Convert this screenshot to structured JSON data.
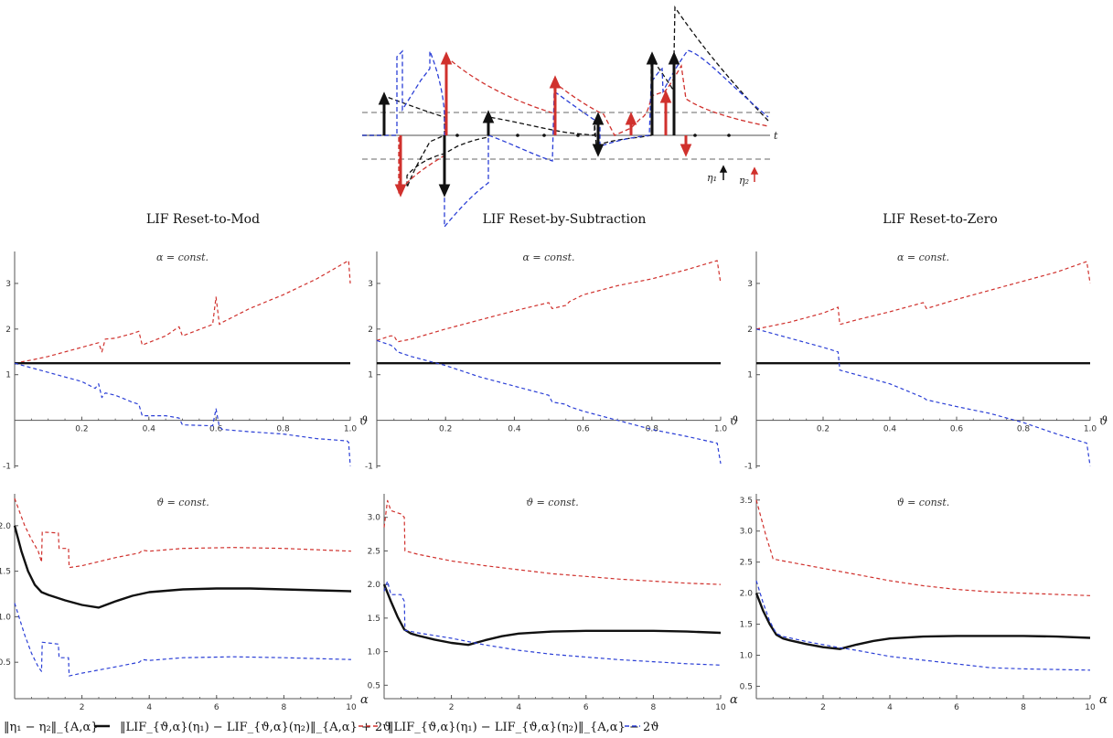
{
  "colors": {
    "black": "#111111",
    "red": "#d0312d",
    "blue": "#2b3fd6",
    "grey": "#9a9a9a",
    "axis": "#555555"
  },
  "diagram": {
    "time_label": "t",
    "eta1_label": "η₁",
    "eta2_label": "η₂"
  },
  "column_titles": [
    "LIF Reset-to-Mod",
    "LIF Reset-by-Subtraction",
    "LIF Reset-to-Zero"
  ],
  "legend": {
    "black_label": "‖η₁ − η₂‖_{A,α}",
    "red_label": "‖LIF_{ϑ,α}(η₁) − LIF_{ϑ,α}(η₂)‖_{A,α} + 2ϑ",
    "blue_label": "‖LIF_{ϑ,α}(η₁) − LIF_{ϑ,α}(η₂)‖_{A,α} − 2ϑ"
  },
  "chart_data": [
    {
      "id": "mod-theta",
      "type": "line",
      "title": "α = const.",
      "xlabel": "ϑ",
      "xlim": [
        0,
        1
      ],
      "ylim": [
        -1.05,
        3.7
      ],
      "xticks": [
        0.2,
        0.4,
        0.6,
        0.8,
        1.0
      ],
      "xtick_labels": [
        "0.2",
        "0.4",
        "0.6",
        "0.8",
        "1.0"
      ],
      "yticks": [
        -1,
        1,
        2,
        3
      ],
      "ytick_labels": [
        "-1",
        "1",
        "2",
        "3"
      ],
      "series": [
        {
          "name": "red-dashed",
          "color": "red",
          "dash": true,
          "x": [
            0,
            0.05,
            0.1,
            0.15,
            0.2,
            0.24,
            0.25,
            0.26,
            0.27,
            0.3,
            0.35,
            0.37,
            0.38,
            0.45,
            0.49,
            0.5,
            0.59,
            0.6,
            0.61,
            0.62,
            0.7,
            0.8,
            0.9,
            0.99,
            0.995,
            1.0
          ],
          "y": [
            1.25,
            1.32,
            1.4,
            1.5,
            1.6,
            1.68,
            1.7,
            1.5,
            1.78,
            1.8,
            1.9,
            1.95,
            1.65,
            1.85,
            2.05,
            1.85,
            2.1,
            2.7,
            2.1,
            2.15,
            2.45,
            2.75,
            3.1,
            3.48,
            3.5,
            3.0
          ]
        },
        {
          "name": "black-solid",
          "color": "black",
          "dash": false,
          "x": [
            0,
            1.0
          ],
          "y": [
            1.25,
            1.25
          ]
        },
        {
          "name": "blue-dashed",
          "color": "blue",
          "dash": true,
          "x": [
            0,
            0.05,
            0.1,
            0.15,
            0.2,
            0.24,
            0.25,
            0.26,
            0.27,
            0.3,
            0.35,
            0.37,
            0.38,
            0.45,
            0.49,
            0.5,
            0.59,
            0.6,
            0.61,
            0.62,
            0.7,
            0.8,
            0.9,
            0.99,
            0.995,
            1.0
          ],
          "y": [
            1.25,
            1.15,
            1.05,
            0.95,
            0.85,
            0.7,
            0.8,
            0.5,
            0.6,
            0.55,
            0.4,
            0.35,
            0.1,
            0.1,
            0.05,
            -0.1,
            -0.12,
            0.25,
            -0.15,
            -0.2,
            -0.25,
            -0.3,
            -0.4,
            -0.45,
            -0.48,
            -1.0
          ]
        }
      ]
    },
    {
      "id": "sub-theta",
      "type": "line",
      "title": "α = const.",
      "xlabel": "ϑ",
      "xlim": [
        0,
        1
      ],
      "ylim": [
        -1.05,
        3.7
      ],
      "xticks": [
        0.2,
        0.4,
        0.6,
        0.8,
        1.0
      ],
      "xtick_labels": [
        "0.2",
        "0.4",
        "0.6",
        "0.8",
        "1.0"
      ],
      "yticks": [
        -1,
        1,
        2,
        3
      ],
      "ytick_labels": [
        "-1",
        "1",
        "2",
        "3"
      ],
      "series": [
        {
          "name": "red-dashed",
          "color": "red",
          "dash": true,
          "x": [
            0,
            0.04,
            0.05,
            0.06,
            0.1,
            0.2,
            0.3,
            0.4,
            0.5,
            0.51,
            0.55,
            0.56,
            0.6,
            0.7,
            0.8,
            0.9,
            0.99,
            1.0
          ],
          "y": [
            1.75,
            1.85,
            1.85,
            1.72,
            1.78,
            2.0,
            2.2,
            2.4,
            2.58,
            2.45,
            2.52,
            2.6,
            2.75,
            2.95,
            3.1,
            3.3,
            3.5,
            3.0
          ]
        },
        {
          "name": "black-solid",
          "color": "black",
          "dash": false,
          "x": [
            0,
            1.0
          ],
          "y": [
            1.25,
            1.25
          ]
        },
        {
          "name": "blue-dashed",
          "color": "blue",
          "dash": true,
          "x": [
            0,
            0.04,
            0.05,
            0.06,
            0.1,
            0.2,
            0.3,
            0.4,
            0.5,
            0.51,
            0.55,
            0.56,
            0.6,
            0.7,
            0.8,
            0.9,
            0.99,
            1.0
          ],
          "y": [
            1.75,
            1.65,
            1.6,
            1.5,
            1.4,
            1.2,
            0.95,
            0.75,
            0.55,
            0.4,
            0.35,
            0.3,
            0.2,
            0.0,
            -0.2,
            -0.35,
            -0.5,
            -0.95
          ]
        }
      ]
    },
    {
      "id": "zero-theta",
      "type": "line",
      "title": "α = const.",
      "xlabel": "ϑ",
      "xlim": [
        0,
        1
      ],
      "ylim": [
        -1.05,
        3.7
      ],
      "xticks": [
        0.2,
        0.4,
        0.6,
        0.8,
        1.0
      ],
      "xtick_labels": [
        "0.2",
        "0.4",
        "0.6",
        "0.8",
        "1.0"
      ],
      "yticks": [
        -1,
        1,
        2,
        3
      ],
      "ytick_labels": [
        "-1",
        "1",
        "2",
        "3"
      ],
      "series": [
        {
          "name": "red-dashed",
          "color": "red",
          "dash": true,
          "x": [
            0,
            0.1,
            0.2,
            0.245,
            0.25,
            0.3,
            0.4,
            0.5,
            0.51,
            0.6,
            0.7,
            0.8,
            0.9,
            0.99,
            1.0
          ],
          "y": [
            2.0,
            2.15,
            2.35,
            2.48,
            2.1,
            2.2,
            2.38,
            2.58,
            2.45,
            2.65,
            2.85,
            3.05,
            3.25,
            3.48,
            3.0
          ]
        },
        {
          "name": "black-solid",
          "color": "black",
          "dash": false,
          "x": [
            0,
            1.0
          ],
          "y": [
            1.25,
            1.25
          ]
        },
        {
          "name": "blue-dashed",
          "color": "blue",
          "dash": true,
          "x": [
            0,
            0.1,
            0.2,
            0.245,
            0.25,
            0.3,
            0.4,
            0.5,
            0.51,
            0.6,
            0.7,
            0.8,
            0.9,
            0.99,
            1.0
          ],
          "y": [
            2.0,
            1.8,
            1.6,
            1.5,
            1.1,
            1.0,
            0.8,
            0.5,
            0.45,
            0.3,
            0.15,
            -0.05,
            -0.3,
            -0.5,
            -1.0
          ]
        }
      ]
    },
    {
      "id": "mod-alpha",
      "type": "line",
      "title": "ϑ = const.",
      "xlabel": "α",
      "xlim": [
        0,
        10
      ],
      "ylim": [
        0.1,
        2.35
      ],
      "xticks": [
        2,
        4,
        6,
        8,
        10
      ],
      "xtick_labels": [
        "2",
        "4",
        "6",
        "8",
        "10"
      ],
      "yticks": [
        0.5,
        1.0,
        1.5,
        2.0
      ],
      "ytick_labels": [
        "0.5",
        "1.0",
        "1.5",
        "2.0"
      ],
      "series": [
        {
          "name": "red-dashed",
          "color": "red",
          "dash": true,
          "x": [
            0,
            0.3,
            0.5,
            0.7,
            0.8,
            0.82,
            1.3,
            1.32,
            1.6,
            1.62,
            2.0,
            3.0,
            3.7,
            3.8,
            4.0,
            5.0,
            6.5,
            8.0,
            10.0
          ],
          "y": [
            2.3,
            2.0,
            1.85,
            1.72,
            1.6,
            1.93,
            1.92,
            1.75,
            1.75,
            1.54,
            1.56,
            1.65,
            1.7,
            1.73,
            1.72,
            1.75,
            1.76,
            1.75,
            1.72
          ]
        },
        {
          "name": "black-solid",
          "color": "black",
          "dash": false,
          "x": [
            0,
            0.2,
            0.4,
            0.6,
            0.8,
            1.0,
            1.5,
            2.0,
            2.5,
            3.0,
            3.5,
            4.0,
            5.0,
            6.0,
            7.0,
            8.0,
            9.0,
            10.0
          ],
          "y": [
            2.0,
            1.72,
            1.5,
            1.35,
            1.27,
            1.24,
            1.18,
            1.13,
            1.1,
            1.17,
            1.23,
            1.27,
            1.3,
            1.31,
            1.31,
            1.3,
            1.29,
            1.28
          ]
        },
        {
          "name": "blue-dashed",
          "color": "blue",
          "dash": true,
          "x": [
            0,
            0.3,
            0.5,
            0.7,
            0.8,
            0.82,
            1.3,
            1.32,
            1.6,
            1.62,
            2.0,
            3.0,
            3.7,
            3.8,
            4.0,
            5.0,
            6.5,
            8.0,
            10.0
          ],
          "y": [
            1.15,
            0.8,
            0.6,
            0.45,
            0.4,
            0.72,
            0.7,
            0.55,
            0.55,
            0.35,
            0.38,
            0.45,
            0.5,
            0.53,
            0.52,
            0.55,
            0.56,
            0.55,
            0.53
          ]
        }
      ]
    },
    {
      "id": "sub-alpha",
      "type": "line",
      "title": "ϑ = const.",
      "xlabel": "α",
      "xlim": [
        0,
        10
      ],
      "ylim": [
        0.3,
        3.35
      ],
      "xticks": [
        2,
        4,
        6,
        8,
        10
      ],
      "xtick_labels": [
        "2",
        "4",
        "6",
        "8",
        "10"
      ],
      "yticks": [
        0.5,
        1.0,
        1.5,
        2.0,
        2.5,
        3.0
      ],
      "ytick_labels": [
        "0.5",
        "1.0",
        "1.5",
        "2.0",
        "2.5",
        "3.0"
      ],
      "series": [
        {
          "name": "red-dashed",
          "color": "red",
          "dash": true,
          "x": [
            0,
            0.1,
            0.2,
            0.5,
            0.6,
            0.62,
            1.0,
            2.0,
            3.0,
            4.0,
            5.0,
            6.0,
            7.0,
            8.0,
            9.0,
            10.0
          ],
          "y": [
            2.85,
            3.25,
            3.1,
            3.05,
            3.0,
            2.5,
            2.45,
            2.35,
            2.28,
            2.22,
            2.16,
            2.12,
            2.08,
            2.05,
            2.02,
            2.0
          ]
        },
        {
          "name": "black-solid",
          "color": "black",
          "dash": false,
          "x": [
            0,
            0.2,
            0.4,
            0.6,
            0.8,
            1.0,
            1.5,
            2.0,
            2.5,
            3.0,
            3.5,
            4.0,
            5.0,
            6.0,
            7.0,
            8.0,
            9.0,
            10.0
          ],
          "y": [
            2.0,
            1.75,
            1.52,
            1.33,
            1.27,
            1.24,
            1.18,
            1.13,
            1.1,
            1.17,
            1.23,
            1.27,
            1.3,
            1.31,
            1.31,
            1.31,
            1.3,
            1.28
          ]
        },
        {
          "name": "blue-dashed",
          "color": "blue",
          "dash": true,
          "x": [
            0,
            0.1,
            0.2,
            0.5,
            0.6,
            0.62,
            1.0,
            2.0,
            3.0,
            4.0,
            5.0,
            6.0,
            7.0,
            8.0,
            9.0,
            10.0
          ],
          "y": [
            1.9,
            2.05,
            1.85,
            1.85,
            1.75,
            1.32,
            1.28,
            1.2,
            1.1,
            1.02,
            0.96,
            0.92,
            0.88,
            0.85,
            0.82,
            0.8
          ]
        }
      ]
    },
    {
      "id": "zero-alpha",
      "type": "line",
      "title": "ϑ = const.",
      "xlabel": "α",
      "xlim": [
        0,
        10
      ],
      "ylim": [
        0.3,
        3.6
      ],
      "xticks": [
        2,
        4,
        6,
        8,
        10
      ],
      "xtick_labels": [
        "2",
        "4",
        "6",
        "8",
        "10"
      ],
      "yticks": [
        0.5,
        1.0,
        1.5,
        2.0,
        2.5,
        3.0,
        3.5
      ],
      "ytick_labels": [
        "0.5",
        "1.0",
        "1.5",
        "2.0",
        "2.5",
        "3.0",
        "3.5"
      ],
      "series": [
        {
          "name": "red-dashed",
          "color": "red",
          "dash": true,
          "x": [
            0,
            0.15,
            0.3,
            0.45,
            0.5,
            1.0,
            2.0,
            3.0,
            4.0,
            5.0,
            6.0,
            7.0,
            8.0,
            9.0,
            10.0
          ],
          "y": [
            3.5,
            3.2,
            2.9,
            2.65,
            2.55,
            2.5,
            2.4,
            2.3,
            2.2,
            2.12,
            2.06,
            2.02,
            2.0,
            1.98,
            1.96
          ]
        },
        {
          "name": "black-solid",
          "color": "black",
          "dash": false,
          "x": [
            0,
            0.2,
            0.4,
            0.6,
            0.8,
            1.0,
            1.5,
            2.0,
            2.5,
            3.0,
            3.5,
            4.0,
            5.0,
            6.0,
            7.0,
            8.0,
            9.0,
            10.0
          ],
          "y": [
            2.0,
            1.72,
            1.5,
            1.33,
            1.27,
            1.24,
            1.18,
            1.13,
            1.1,
            1.17,
            1.23,
            1.27,
            1.3,
            1.31,
            1.31,
            1.31,
            1.3,
            1.28
          ]
        },
        {
          "name": "blue-dashed",
          "color": "blue",
          "dash": true,
          "x": [
            0,
            0.2,
            0.4,
            0.6,
            0.8,
            1.0,
            1.5,
            2.0,
            2.5,
            3.0,
            4.0,
            5.0,
            6.0,
            7.0,
            8.0,
            9.0,
            10.0
          ],
          "y": [
            2.2,
            1.85,
            1.55,
            1.35,
            1.3,
            1.28,
            1.22,
            1.17,
            1.12,
            1.08,
            0.98,
            0.92,
            0.86,
            0.8,
            0.78,
            0.77,
            0.76
          ]
        }
      ]
    }
  ]
}
